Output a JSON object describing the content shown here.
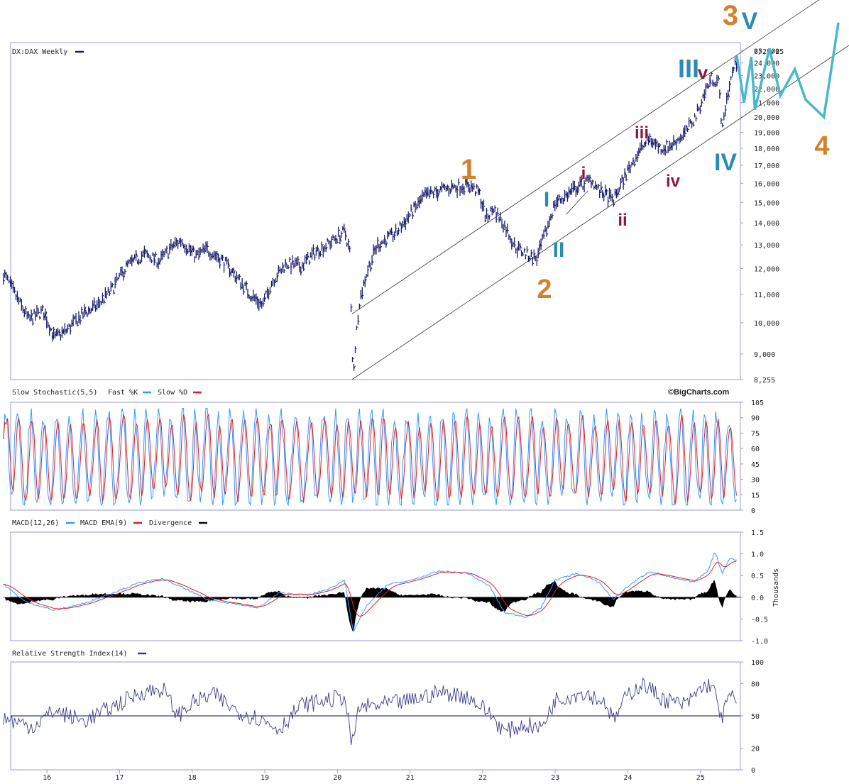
{
  "colors": {
    "price": "#1a1a6e",
    "fast_k": "#3399ff",
    "slow_d": "#e02020",
    "macd": "#3399ff",
    "macd_ema": "#e02020",
    "divergence": "#000000",
    "rsi": "#3a3a8a",
    "orange": "#d4822a",
    "blue": "#2a8bb5",
    "maroon": "#8b1a3a",
    "teal": "#4ab8c8",
    "axis": "#9a9ad0"
  },
  "chart_data": [
    {
      "type": "bar",
      "title": "DX:DAX Weekly",
      "date_label": "6/29/25",
      "yscale": "log",
      "ylim": [
        8255,
        25000
      ],
      "y_ticks": [
        "25,000",
        "24,000",
        "23,000",
        "22,000",
        "21,000",
        "20,000",
        "19,000",
        "18,000",
        "17,000",
        "16,000",
        "15,000",
        "14,000",
        "13,000",
        "12,000",
        "11,000",
        "10,000",
        "9,000",
        "8,255"
      ],
      "y_tick_values": [
        25000,
        24000,
        23000,
        22000,
        21000,
        20000,
        19000,
        18000,
        17000,
        16000,
        15000,
        14000,
        13000,
        12000,
        11000,
        10000,
        9000,
        8255
      ],
      "path_t": [
        2015.4,
        2015.6,
        2015.75,
        2015.95,
        2016.1,
        2016.25,
        2016.5,
        2016.7,
        2016.9,
        2017.1,
        2017.35,
        2017.55,
        2017.75,
        2017.85,
        2018.05,
        2018.2,
        2018.4,
        2018.6,
        2018.8,
        2018.97,
        2019.1,
        2019.3,
        2019.5,
        2019.7,
        2019.9,
        2020.1,
        2020.17,
        2020.2,
        2020.22,
        2020.3,
        2020.4,
        2020.55,
        2020.8,
        2021.0,
        2021.2,
        2021.4,
        2021.6,
        2021.8,
        2021.95,
        2022.05,
        2022.15,
        2022.3,
        2022.45,
        2022.6,
        2022.75,
        2022.9,
        2023.0,
        2023.1,
        2023.3,
        2023.5,
        2023.6,
        2023.8,
        2024.0,
        2024.15,
        2024.3,
        2024.45,
        2024.6,
        2024.8,
        2024.95,
        2025.05,
        2025.15,
        2025.25,
        2025.3,
        2025.35,
        2025.45,
        2025.5
      ],
      "path_v": [
        11800,
        10800,
        10100,
        10400,
        9500,
        9700,
        10300,
        10600,
        11200,
        12100,
        12600,
        12300,
        13000,
        13200,
        12500,
        12800,
        12400,
        11700,
        11000,
        10600,
        11500,
        12200,
        12100,
        12700,
        13100,
        13600,
        12700,
        9000,
        8500,
        10700,
        11800,
        13000,
        13500,
        14400,
        15300,
        15600,
        15800,
        15900,
        15500,
        14200,
        14700,
        13900,
        12900,
        12600,
        12400,
        13900,
        15000,
        15200,
        15800,
        16200,
        15600,
        15100,
        16700,
        17800,
        18600,
        18000,
        18200,
        19000,
        20200,
        21600,
        22800,
        22500,
        19000,
        21000,
        23500,
        24000
      ],
      "channel": {
        "start_year": 2020.2,
        "start_lower": 8255,
        "start_upper": 10300,
        "end_year": 2026.1,
        "end_lower": 21800,
        "end_upper": 27200
      },
      "wave_labels": [
        {
          "text": "1",
          "color": "orange"
        },
        {
          "text": "2",
          "color": "orange"
        },
        {
          "text": "I",
          "color": "blue"
        },
        {
          "text": "II",
          "color": "blue"
        },
        {
          "text": "i",
          "color": "maroon"
        },
        {
          "text": "ii",
          "color": "maroon"
        },
        {
          "text": "iii",
          "color": "maroon"
        },
        {
          "text": "iv",
          "color": "maroon"
        },
        {
          "text": "III",
          "color": "blue"
        },
        {
          "text": "v",
          "color": "maroon"
        },
        {
          "text": "IV",
          "color": "blue"
        },
        {
          "text": "3",
          "color": "orange"
        },
        {
          "text": "V",
          "color": "blue"
        },
        {
          "text": "4",
          "color": "orange"
        }
      ],
      "projection": [
        [
          2025.5,
          24600
        ],
        [
          2025.6,
          21000
        ],
        [
          2025.7,
          24500
        ],
        [
          2025.75,
          20500
        ],
        [
          2025.95,
          25200
        ],
        [
          2026.1,
          21500
        ],
        [
          2026.3,
          23500
        ],
        [
          2026.45,
          21200
        ],
        [
          2026.7,
          20000
        ],
        [
          2026.9,
          27500
        ]
      ]
    },
    {
      "type": "line",
      "title": "Slow Stochastic(5,5)",
      "legend": [
        "Fast %K",
        "Slow %D"
      ],
      "ylim": [
        0,
        105
      ],
      "y_ticks": [
        "105",
        "90",
        "75",
        "60",
        "45",
        "30",
        "15",
        "0"
      ],
      "y_tick_values": [
        105,
        90,
        75,
        60,
        45,
        30,
        15,
        0
      ],
      "credit": "©BigCharts.com"
    },
    {
      "type": "line",
      "title": "MACD(12,26)",
      "legend": [
        "MACD",
        "MACD EMA(9)",
        "Divergence"
      ],
      "ylim": [
        -1.0,
        1.5
      ],
      "y_ticks": [
        "1.5",
        "1.0",
        "0.5",
        "0.0",
        "-0.5",
        "-1.0"
      ],
      "y_tick_values": [
        1.5,
        1.0,
        0.5,
        0.0,
        -0.5,
        -1.0
      ],
      "ylabel": "Thousands",
      "macd_t": [
        2015.4,
        2015.7,
        2016.1,
        2016.5,
        2016.9,
        2017.3,
        2017.6,
        2017.9,
        2018.2,
        2018.6,
        2018.9,
        2019.2,
        2019.6,
        2019.9,
        2020.1,
        2020.22,
        2020.4,
        2020.7,
        2021.0,
        2021.4,
        2021.8,
        2022.1,
        2022.3,
        2022.6,
        2022.8,
        2023.0,
        2023.3,
        2023.6,
        2023.8,
        2024.0,
        2024.3,
        2024.6,
        2024.9,
        2025.1,
        2025.2,
        2025.3,
        2025.4,
        2025.5
      ],
      "macd_v": [
        0.3,
        -0.1,
        -0.3,
        -0.15,
        0.1,
        0.35,
        0.42,
        0.2,
        -0.05,
        -0.15,
        -0.25,
        0.1,
        0.05,
        0.2,
        0.4,
        -0.8,
        -0.2,
        0.3,
        0.38,
        0.6,
        0.55,
        0.25,
        -0.35,
        -0.45,
        -0.25,
        0.4,
        0.55,
        0.35,
        -0.05,
        0.25,
        0.6,
        0.45,
        0.35,
        0.6,
        1.05,
        0.55,
        0.9,
        0.85
      ]
    },
    {
      "type": "line",
      "title": "Relative Strength Index(14)",
      "ylim": [
        0,
        100
      ],
      "y_ticks": [
        "100",
        "80",
        "50",
        "20",
        "0"
      ],
      "y_tick_values": [
        100,
        80,
        50,
        20,
        0
      ],
      "reference_line": 50,
      "rsi_t": [
        2015.4,
        2015.8,
        2016.1,
        2016.5,
        2016.9,
        2017.3,
        2017.6,
        2017.8,
        2018.0,
        2018.3,
        2018.6,
        2018.9,
        2019.2,
        2019.5,
        2019.9,
        2020.1,
        2020.2,
        2020.3,
        2020.6,
        2021.0,
        2021.4,
        2021.8,
        2022.1,
        2022.3,
        2022.6,
        2022.8,
        2023.0,
        2023.4,
        2023.7,
        2023.8,
        2024.0,
        2024.2,
        2024.5,
        2024.8,
        2025.0,
        2025.15,
        2025.3,
        2025.4,
        2025.5
      ],
      "rsi_v": [
        48,
        40,
        55,
        45,
        58,
        72,
        75,
        50,
        62,
        70,
        55,
        48,
        38,
        60,
        65,
        68,
        22,
        58,
        60,
        64,
        72,
        68,
        52,
        35,
        42,
        38,
        65,
        72,
        62,
        45,
        70,
        80,
        65,
        60,
        75,
        80,
        48,
        70,
        62
      ]
    }
  ],
  "x_axis": {
    "years": [
      2016,
      2017,
      2018,
      2019,
      2020,
      2021,
      2022,
      2023,
      2024,
      2025
    ],
    "labels": [
      "16",
      "17",
      "18",
      "19",
      "20",
      "21",
      "22",
      "23",
      "24",
      "25"
    ]
  }
}
